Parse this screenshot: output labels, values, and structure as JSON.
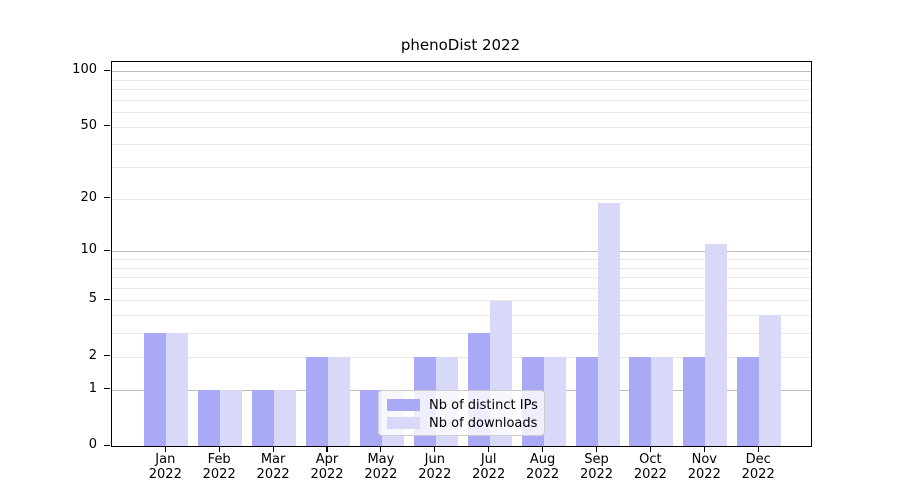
{
  "title": "phenoDist 2022",
  "colors": {
    "distinct_ips_bar": "#a9a9f5",
    "downloads_bar": "#d8d8f8",
    "grid_major": "#bcbcbc",
    "grid_minor": "#e9e9e9",
    "axis_line": "#000000",
    "legend_border": "#cccccc"
  },
  "legend": {
    "items": [
      {
        "label": "Nb of distinct IPs",
        "swatch": "distinct_ips_bar"
      },
      {
        "label": "Nb of downloads",
        "swatch": "downloads_bar"
      }
    ]
  },
  "chart_data": {
    "type": "bar",
    "title": "phenoDist 2022",
    "months": [
      "Jan",
      "Feb",
      "Mar",
      "Apr",
      "May",
      "Jun",
      "Jul",
      "Aug",
      "Sep",
      "Oct",
      "Nov",
      "Dec"
    ],
    "year": "2022",
    "categories": [
      "Jan 2022",
      "Feb 2022",
      "Mar 2022",
      "Apr 2022",
      "May 2022",
      "Jun 2022",
      "Jul 2022",
      "Aug 2022",
      "Sep 2022",
      "Oct 2022",
      "Nov 2022",
      "Dec 2022"
    ],
    "series": [
      {
        "name": "Nb of distinct IPs",
        "values": [
          3,
          1,
          1,
          2,
          1,
          2,
          3,
          2,
          2,
          2,
          2,
          2
        ]
      },
      {
        "name": "Nb of downloads",
        "values": [
          3,
          1,
          1,
          2,
          1,
          2,
          5,
          2,
          19,
          2,
          11,
          4
        ]
      }
    ],
    "y_axis": {
      "scale": "log10(value+1)",
      "tick_values": [
        0,
        1,
        2,
        5,
        10,
        20,
        50,
        100
      ],
      "tick_labels": [
        "0",
        "1",
        "2",
        "5",
        "10",
        "20",
        "50",
        "100"
      ],
      "major_gridlines": [
        1,
        10,
        100
      ],
      "minor_gridlines": [
        2,
        3,
        4,
        5,
        6,
        7,
        8,
        9,
        20,
        30,
        40,
        50,
        60,
        70,
        80,
        90
      ],
      "ylim": [
        0,
        112
      ],
      "grid": true
    },
    "legend_position": "lower center",
    "xlabel": "",
    "ylabel": ""
  }
}
